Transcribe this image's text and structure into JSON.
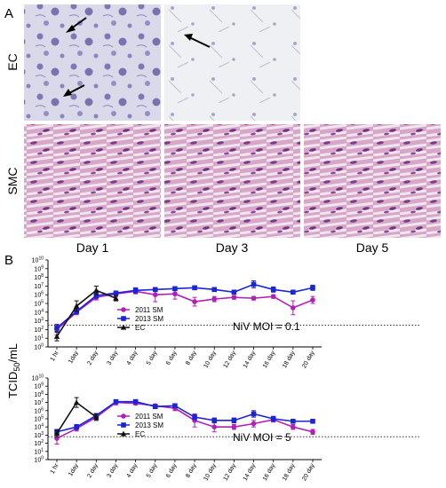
{
  "panel_labels": {
    "a": "A",
    "b": "B"
  },
  "micrographs": {
    "row_labels": [
      "EC",
      "SMC"
    ],
    "day_labels": [
      "Day 1",
      "Day 3",
      "Day 5"
    ]
  },
  "shared_ylabel_base": "TCID",
  "shared_ylabel_sub": "50",
  "shared_ylabel_unit": "/mL",
  "colors": {
    "sm2011": "#b21fb5",
    "sm2013": "#1a25d6",
    "ec": "#111111",
    "cutoff": "#333333"
  },
  "chart_data": [
    {
      "type": "line",
      "annotation": "NiV MOI = 0.1",
      "categories": [
        "1 hr",
        "1day",
        "2 day",
        "3 day",
        "4 day",
        "5 day",
        "6 day",
        "8 day",
        "10 day",
        "12 day",
        "14 day",
        "16 day",
        "18 day",
        "20 day"
      ],
      "yscale": "log",
      "ytick_labels": [
        "10^0",
        "10^1",
        "10^2",
        "10^3",
        "10^4",
        "10^5",
        "10^6",
        "10^7",
        "10^8",
        "10^9",
        "10^10"
      ],
      "ylim_exp": [
        0,
        10
      ],
      "cutoff_exp": 2.5,
      "series": [
        {
          "name": "2011 SM",
          "values_exp": [
            2.0,
            4.0,
            5.7,
            6.1,
            6.4,
            6.0,
            6.1,
            5.2,
            5.5,
            5.7,
            5.6,
            5.8,
            4.5,
            5.4
          ],
          "err": [
            0.6,
            0.3,
            0.3,
            0.3,
            0.3,
            0.8,
            0.6,
            0.5,
            0.3,
            0.2,
            0.2,
            0.2,
            0.8,
            0.4
          ]
        },
        {
          "name": "2013 SM",
          "values_exp": [
            2.2,
            4.1,
            5.9,
            6.2,
            6.5,
            6.6,
            6.7,
            6.8,
            6.6,
            6.3,
            7.2,
            6.6,
            6.3,
            6.8
          ],
          "err": [
            0.4,
            0.3,
            0.3,
            0.2,
            0.3,
            0.2,
            0.2,
            0.2,
            0.2,
            0.2,
            0.4,
            0.3,
            0.2,
            0.3
          ]
        },
        {
          "name": "EC",
          "values_exp": [
            1.2,
            4.7,
            6.5,
            5.6
          ],
          "err": [
            0.5,
            0.6,
            0.5,
            0.3
          ]
        }
      ]
    },
    {
      "type": "line",
      "annotation": "NiV MOI = 5",
      "categories": [
        "1 hr",
        "1day",
        "2 day",
        "3 day",
        "4 day",
        "5 day",
        "6 day",
        "8 day",
        "10 day",
        "12 day",
        "14 day",
        "16 day",
        "18 day",
        "20 day"
      ],
      "yscale": "log",
      "ytick_labels": [
        "10^0",
        "10^1",
        "10^2",
        "10^3",
        "10^4",
        "10^5",
        "10^6",
        "10^7",
        "10^8",
        "10^9",
        "10^10"
      ],
      "ylim_exp": [
        0,
        10
      ],
      "cutoff_exp": 2.8,
      "series": [
        {
          "name": "2011 SM",
          "values_exp": [
            2.6,
            3.8,
            5.2,
            7.0,
            6.9,
            6.6,
            6.3,
            4.8,
            4.0,
            4.0,
            4.4,
            4.9,
            4.0,
            3.4
          ],
          "err": [
            0.7,
            0.3,
            0.3,
            0.3,
            0.2,
            0.2,
            0.3,
            0.8,
            0.6,
            0.3,
            0.4,
            0.3,
            0.3,
            0.3
          ]
        },
        {
          "name": "2013 SM",
          "values_exp": [
            3.4,
            4.0,
            5.4,
            7.1,
            7.1,
            6.5,
            6.6,
            5.2,
            4.8,
            4.8,
            5.6,
            5.0,
            4.7,
            4.7
          ],
          "err": [
            0.3,
            0.3,
            0.2,
            0.2,
            0.2,
            0.2,
            0.2,
            0.3,
            0.3,
            0.3,
            0.4,
            0.3,
            0.2,
            0.2
          ]
        },
        {
          "name": "EC",
          "values_exp": [
            3.2,
            7.0,
            5.2
          ],
          "err": [
            0.4,
            0.6,
            0.4
          ]
        }
      ]
    }
  ]
}
